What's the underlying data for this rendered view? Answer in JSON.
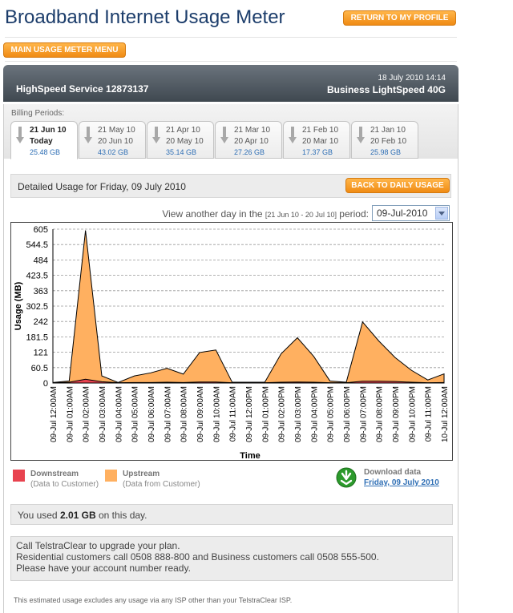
{
  "header": {
    "title": "Broadband Internet Usage Meter",
    "profile_button": "RETURN TO MY PROFILE",
    "menu_button": "MAIN USAGE METER MENU"
  },
  "banner": {
    "service": "HighSpeed Service 12873137",
    "datetime": "18 July 2010 14:14",
    "plan": "Business LightSpeed 40G"
  },
  "billing": {
    "label": "Billing Periods:",
    "periods": [
      {
        "from": "21 Jun 10",
        "to": "Today",
        "usage": "25.48 GB",
        "active": true
      },
      {
        "from": "21 May 10",
        "to": "20 Jun 10",
        "usage": "43.02 GB",
        "active": false
      },
      {
        "from": "21 Apr 10",
        "to": "20 May 10",
        "usage": "35.14 GB",
        "active": false
      },
      {
        "from": "21 Mar 10",
        "to": "20 Apr 10",
        "usage": "27.26 GB",
        "active": false
      },
      {
        "from": "21 Feb 10",
        "to": "20 Mar 10",
        "usage": "17.37 GB",
        "active": false
      },
      {
        "from": "21 Jan 10",
        "to": "20 Feb 10",
        "usage": "25.98 GB",
        "active": false
      }
    ]
  },
  "detail": {
    "title": "Detailed Usage for Friday, 09 July 2010",
    "back_button": "BACK TO DAILY USAGE",
    "view_prefix": "View another day in the",
    "view_range": "[21 Jun 10 - 20 Jul 10]",
    "view_suffix": "period:",
    "selected_day": "09-Jul-2010"
  },
  "legend": {
    "downstream_name": "Downstream",
    "downstream_sub": "(Data to Customer)",
    "upstream_name": "Upstream",
    "upstream_sub": "(Data from Customer)",
    "downstream_color": "#e8434f",
    "upstream_color": "#ffb060"
  },
  "download": {
    "label": "Download data",
    "link": "Friday, 09 July 2010"
  },
  "usage_summary": {
    "prefix": "You used",
    "amount": "2.01 GB",
    "suffix": "on this day."
  },
  "info": {
    "line1": "Call TelstraClear to upgrade your plan.",
    "line2": "Residential customers call 0508 888-800 and Business customers call 0508 555-500.",
    "line3": "Please have your account number ready."
  },
  "footnote": "This estimated usage excludes any usage via any ISP other than your TelstraClear ISP.",
  "chart_data": {
    "type": "area",
    "xlabel": "Time",
    "ylabel": "Usage (MB)",
    "ylim": [
      0,
      605
    ],
    "yticks": [
      "0",
      "60.5",
      "121",
      "181.5",
      "242",
      "302.5",
      "363",
      "423.5",
      "484",
      "544.5",
      "605"
    ],
    "grid": true,
    "categories": [
      "09-Jul 12:00AM",
      "09-Jul 01:00AM",
      "09-Jul 02:00AM",
      "09-Jul 03:00AM",
      "09-Jul 04:00AM",
      "09-Jul 05:00AM",
      "09-Jul 06:00AM",
      "09-Jul 07:00AM",
      "09-Jul 08:00AM",
      "09-Jul 09:00AM",
      "09-Jul 10:00AM",
      "09-Jul 11:00AM",
      "09-Jul 12:00PM",
      "09-Jul 01:00PM",
      "09-Jul 02:00PM",
      "09-Jul 03:00PM",
      "09-Jul 04:00PM",
      "09-Jul 05:00PM",
      "09-Jul 06:00PM",
      "09-Jul 07:00PM",
      "09-Jul 08:00PM",
      "09-Jul 09:00PM",
      "09-Jul 10:00PM",
      "09-Jul 11:00PM",
      "10-Jul 12:00AM"
    ],
    "series": [
      {
        "name": "Upstream",
        "values": [
          2,
          8,
          600,
          28,
          2,
          28,
          40,
          58,
          35,
          120,
          130,
          3,
          3,
          3,
          115,
          178,
          105,
          8,
          3,
          240,
          165,
          100,
          50,
          12,
          36
        ]
      },
      {
        "name": "Downstream",
        "values": [
          1,
          3,
          15,
          5,
          1,
          2,
          2,
          3,
          2,
          4,
          4,
          1,
          1,
          1,
          3,
          4,
          3,
          1,
          1,
          7,
          7,
          6,
          3,
          1,
          2
        ]
      }
    ]
  }
}
